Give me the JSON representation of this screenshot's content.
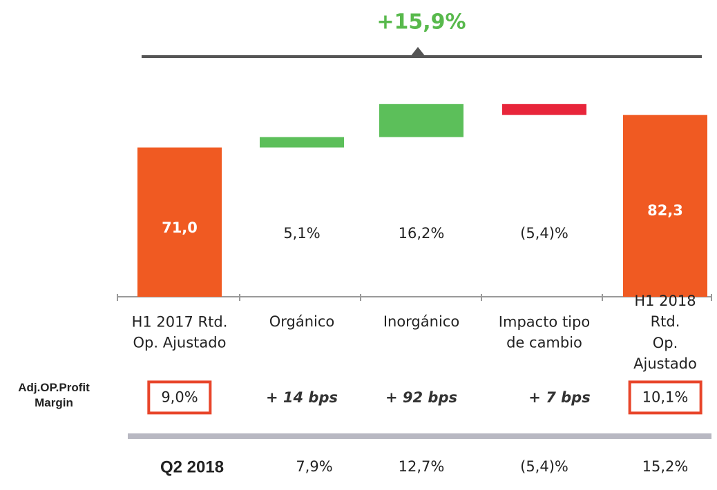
{
  "chart_data": {
    "type": "waterfall",
    "header": "+15,9%",
    "categories": [
      "H1 2017 Rtd.\nOp. Ajustado",
      "Orgánico",
      "Inorgánico",
      "Impacto tipo\nde cambio",
      "H1 2018 Rtd.\nOp. Ajustado"
    ],
    "values": [
      71.0,
      3.6,
      11.5,
      -3.8,
      82.3
    ],
    "value_labels": [
      "71,0",
      null,
      null,
      null,
      "82,3"
    ],
    "growth_labels": [
      "5,1%",
      "16,2%",
      "(5,4)%"
    ],
    "colors": [
      "#f05a22",
      "#5cbf5a",
      "#5cbf5a",
      "#e8253a",
      "#f05a22"
    ],
    "ylim": [
      19,
      87.5
    ],
    "margin_row": {
      "label": "Adj.OP.Profit\nMargin",
      "values": [
        "9,0%",
        "+ 14 bps",
        "+ 92 bps",
        "+ 7 bps",
        "10,1%"
      ]
    },
    "q2_row": {
      "label": "Q2 2018",
      "values": [
        "7,9%",
        "12,7%",
        "(5,4)%",
        "15,2%"
      ]
    }
  }
}
